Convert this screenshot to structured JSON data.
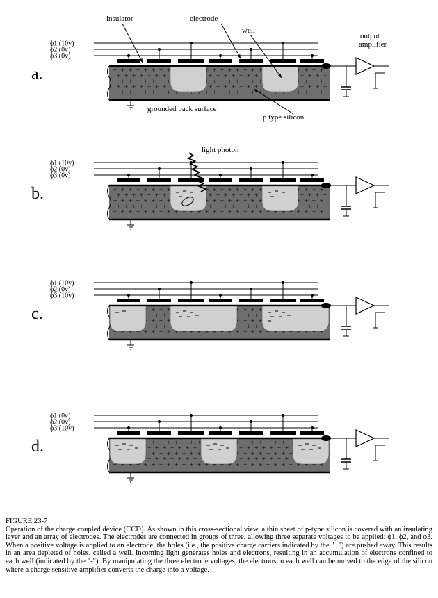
{
  "panels": [
    {
      "label": "a.",
      "phi1": "ϕ1 (10v)",
      "phi2": "ϕ2 (0v)",
      "phi3": "ϕ3 (0v)",
      "shows_photon": false
    },
    {
      "label": "b.",
      "phi1": "ϕ1 (10v)",
      "phi2": "ϕ2 (0v)",
      "phi3": "ϕ3 (0v)",
      "shows_photon": true
    },
    {
      "label": "c.",
      "phi1": "ϕ1 (10v)",
      "phi2": "ϕ2 (0v)",
      "phi3": "ϕ3 (10v)",
      "shows_photon": false
    },
    {
      "label": "d.",
      "phi1": "ϕ1 (0v)",
      "phi2": "ϕ2 (0v)",
      "phi3": "ϕ3 (10v)",
      "shows_photon": false
    }
  ],
  "annotations": {
    "insulator": "insulator",
    "electrode": "electrode",
    "well": "well",
    "output_amplifier_line1": "output",
    "output_amplifier_line2": "amplifier",
    "grounded_back_surface": "grounded back surface",
    "p_type_silicon": "p type silicon",
    "light_photon": "light photon"
  },
  "caption": {
    "figure_label": "FIGURE 23-7",
    "text": "Operation of the charge coupled device (CCD).  As shown in this cross-sectional view, a thin sheet of p-type silicon is covered with an insulating layer and an array of electrodes.  The electrodes are connected in groups of three, allowing three separate voltages to be applied: ϕ1, ϕ2, and ϕ3.  When a positive voltage is applied to an electrode, the holes (i.e., the positive charge carriers indicated by the \"+\") are pushed away.  This results in an area depleted of holes, called a well.  Incoming light generates holes and electrons, resulting in an accumulation of electrons confined to each well (indicated by the \"-\").  By manipulating the three electrode voltages, the electrons in each well can be moved to the edge of the silicon where a charge sensitive amplifier converts the charge into a voltage."
  },
  "colors": {
    "silicon": "#6e6e6e",
    "well": "#d0d0d0",
    "ink": "#000000",
    "background": "#ffffff"
  }
}
